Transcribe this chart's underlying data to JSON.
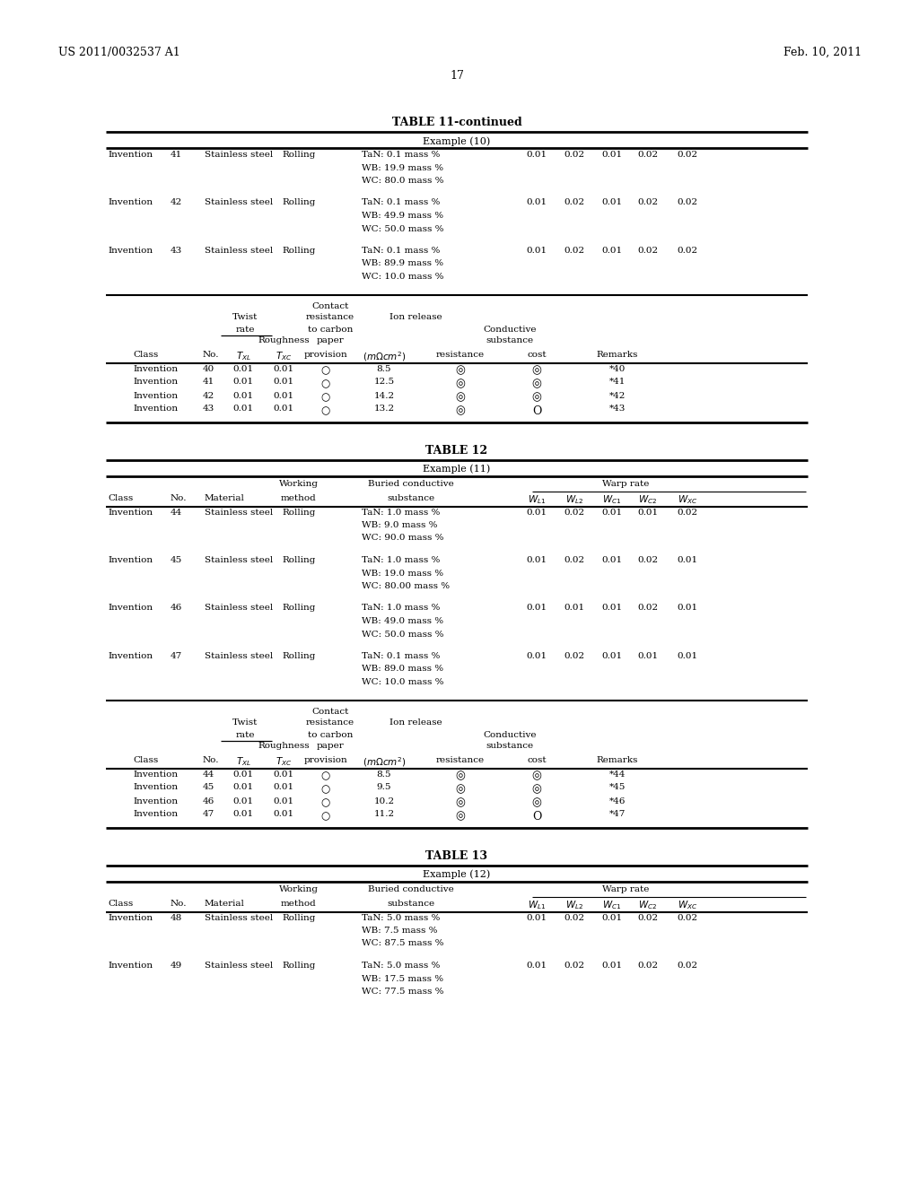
{
  "header_left": "US 2011/0032537 A1",
  "header_right": "Feb. 10, 2011",
  "page_number": "17",
  "background_color": "#ffffff",
  "tables": [
    {
      "title": "TABLE 11-continued",
      "subtitle": "Example (10)",
      "top_rows": [
        [
          "Invention",
          "41",
          "Stainless steel",
          "Rolling",
          "TaN: 0.1 mass %\nWB: 19.9 mass %\nWC: 80.0 mass %",
          "0.01",
          "0.02",
          "0.01",
          "0.02",
          "0.02"
        ],
        [
          "Invention",
          "42",
          "Stainless steel",
          "Rolling",
          "TaN: 0.1 mass %\nWB: 49.9 mass %\nWC: 50.0 mass %",
          "0.01",
          "0.02",
          "0.01",
          "0.02",
          "0.02"
        ],
        [
          "Invention",
          "43",
          "Stainless steel",
          "Rolling",
          "TaN: 0.1 mass %\nWB: 89.9 mass %\nWC: 10.0 mass %",
          "0.01",
          "0.02",
          "0.01",
          "0.02",
          "0.02"
        ]
      ],
      "bot_rows": [
        [
          "Invention",
          "40",
          "0.01",
          "0.01",
          "8.5",
          "◎",
          "◎",
          "*40"
        ],
        [
          "Invention",
          "41",
          "0.01",
          "0.01",
          "12.5",
          "◎",
          "◎",
          "*41"
        ],
        [
          "Invention",
          "42",
          "0.01",
          "0.01",
          "14.2",
          "◎",
          "◎",
          "*42"
        ],
        [
          "Invention",
          "43",
          "0.01",
          "0.01",
          "13.2",
          "◎",
          "O",
          "*43"
        ]
      ]
    },
    {
      "title": "TABLE 12",
      "subtitle": "Example (11)",
      "top_rows": [
        [
          "Invention",
          "44",
          "Stainless steel",
          "Rolling",
          "TaN: 1.0 mass %\nWB: 9.0 mass %\nWC: 90.0 mass %",
          "0.01",
          "0.02",
          "0.01",
          "0.01",
          "0.02"
        ],
        [
          "Invention",
          "45",
          "Stainless steel",
          "Rolling",
          "TaN: 1.0 mass %\nWB: 19.0 mass %\nWC: 80.00 mass %",
          "0.01",
          "0.02",
          "0.01",
          "0.02",
          "0.01"
        ],
        [
          "Invention",
          "46",
          "Stainless steel",
          "Rolling",
          "TaN: 1.0 mass %\nWB: 49.0 mass %\nWC: 50.0 mass %",
          "0.01",
          "0.01",
          "0.01",
          "0.02",
          "0.01"
        ],
        [
          "Invention",
          "47",
          "Stainless steel",
          "Rolling",
          "TaN: 0.1 mass %\nWB: 89.0 mass %\nWC: 10.0 mass %",
          "0.01",
          "0.02",
          "0.01",
          "0.01",
          "0.01"
        ]
      ],
      "bot_rows": [
        [
          "Invention",
          "44",
          "0.01",
          "0.01",
          "8.5",
          "◎",
          "◎",
          "*44"
        ],
        [
          "Invention",
          "45",
          "0.01",
          "0.01",
          "9.5",
          "◎",
          "◎",
          "*45"
        ],
        [
          "Invention",
          "46",
          "0.01",
          "0.01",
          "10.2",
          "◎",
          "◎",
          "*46"
        ],
        [
          "Invention",
          "47",
          "0.01",
          "0.01",
          "11.2",
          "◎",
          "O",
          "*47"
        ]
      ]
    },
    {
      "title": "TABLE 13",
      "subtitle": "Example (12)",
      "top_rows": [
        [
          "Invention",
          "48",
          "Stainless steel",
          "Rolling",
          "TaN: 5.0 mass %\nWB: 7.5 mass %\nWC: 87.5 mass %",
          "0.01",
          "0.02",
          "0.01",
          "0.02",
          "0.02"
        ],
        [
          "Invention",
          "49",
          "Stainless steel",
          "Rolling",
          "TaN: 5.0 mass %\nWB: 17.5 mass %\nWC: 77.5 mass %",
          "0.01",
          "0.02",
          "0.01",
          "0.02",
          "0.02"
        ]
      ]
    }
  ]
}
